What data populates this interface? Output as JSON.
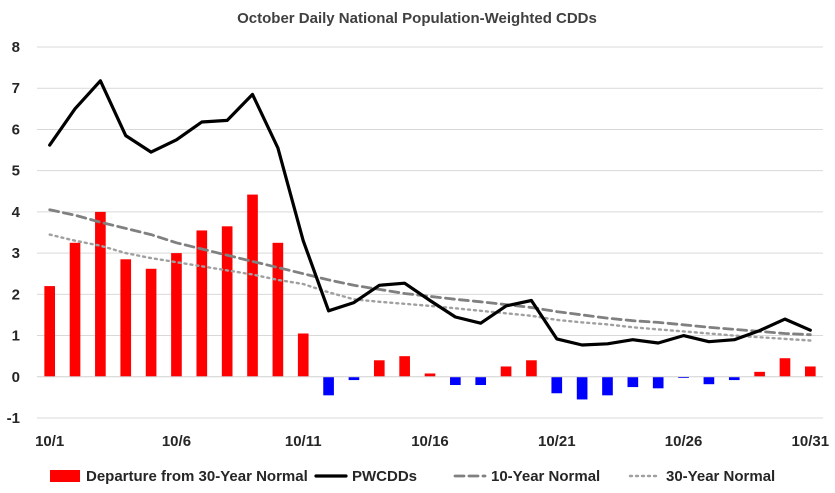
{
  "chart_data": {
    "type": "bar",
    "title": "October Daily National Population-Weighted CDDs",
    "xlabel": "",
    "ylabel": "",
    "ylim": [
      -1,
      8
    ],
    "yticks": [
      "-1",
      "0",
      "1",
      "2",
      "3",
      "4",
      "5",
      "6",
      "7",
      "8"
    ],
    "xtick_labels": [
      "10/1",
      "10/6",
      "10/11",
      "10/16",
      "10/21",
      "10/26",
      "10/31"
    ],
    "categories": [
      "10/1",
      "10/2",
      "10/3",
      "10/4",
      "10/5",
      "10/6",
      "10/7",
      "10/8",
      "10/9",
      "10/10",
      "10/11",
      "10/12",
      "10/13",
      "10/14",
      "10/15",
      "10/16",
      "10/17",
      "10/18",
      "10/19",
      "10/20",
      "10/21",
      "10/22",
      "10/23",
      "10/24",
      "10/25",
      "10/26",
      "10/27",
      "10/28",
      "10/29",
      "10/30",
      "10/31"
    ],
    "grid": "horizontal",
    "legend_position": "bottom",
    "series": [
      {
        "name": "Departure from 30-Year Normal",
        "kind": "bar",
        "values": [
          2.2,
          3.25,
          4.0,
          2.85,
          2.62,
          3.0,
          3.55,
          3.65,
          4.42,
          3.25,
          1.05,
          -0.45,
          -0.08,
          0.4,
          0.5,
          0.08,
          -0.2,
          -0.2,
          0.25,
          0.4,
          -0.4,
          -0.55,
          -0.45,
          -0.25,
          -0.28,
          -0.03,
          -0.18,
          -0.08,
          0.12,
          0.45,
          0.25
        ]
      },
      {
        "name": "PWCDDs",
        "kind": "line",
        "values": [
          5.62,
          6.5,
          7.18,
          5.85,
          5.45,
          5.75,
          6.18,
          6.22,
          6.85,
          5.55,
          3.3,
          1.6,
          1.8,
          2.22,
          2.27,
          1.85,
          1.45,
          1.3,
          1.72,
          1.85,
          0.92,
          0.77,
          0.8,
          0.9,
          0.82,
          1.0,
          0.85,
          0.9,
          1.12,
          1.4,
          1.13
        ]
      },
      {
        "name": "10-Year Normal",
        "kind": "line-dashed",
        "values": [
          4.05,
          3.92,
          3.75,
          3.6,
          3.45,
          3.25,
          3.1,
          2.95,
          2.8,
          2.65,
          2.5,
          2.35,
          2.22,
          2.12,
          2.02,
          1.95,
          1.88,
          1.82,
          1.75,
          1.68,
          1.58,
          1.5,
          1.42,
          1.36,
          1.32,
          1.26,
          1.2,
          1.15,
          1.1,
          1.05,
          1.02
        ]
      },
      {
        "name": "30-Year Normal",
        "kind": "line-dotted",
        "values": [
          3.45,
          3.3,
          3.18,
          3.0,
          2.88,
          2.78,
          2.68,
          2.58,
          2.48,
          2.35,
          2.25,
          2.05,
          1.88,
          1.82,
          1.77,
          1.72,
          1.66,
          1.6,
          1.54,
          1.48,
          1.38,
          1.32,
          1.27,
          1.2,
          1.15,
          1.1,
          1.05,
          1.0,
          0.96,
          0.92,
          0.88
        ]
      }
    ],
    "colors": {
      "positive_bar": "#ff0000",
      "negative_bar": "#0000ff",
      "pwcdds_line": "#000000",
      "ten_year_line": "#808080",
      "thirty_year_line": "#a0a0a0",
      "grid": "#d9d9d9"
    }
  }
}
